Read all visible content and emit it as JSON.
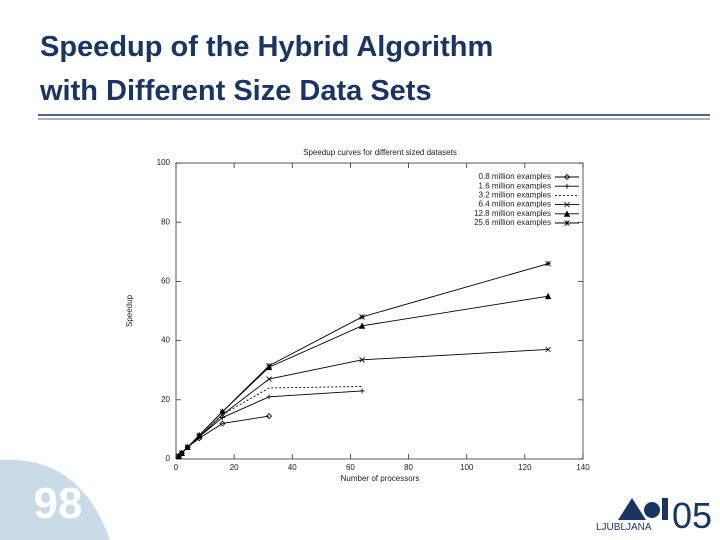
{
  "slide": {
    "title_lines": [
      "Speedup of the Hybrid Algorithm",
      "with Different Size Data Sets"
    ],
    "page_number": "98",
    "logo_text": "LJUBLJANA",
    "logo_year": "05"
  },
  "chart_data": {
    "type": "line",
    "title": "Speedup curves for different sized datasets",
    "x_label": "Number of processors",
    "y_label": "Speedup",
    "xlim": [
      0,
      140
    ],
    "xticks": [
      0,
      20,
      40,
      60,
      80,
      100,
      120,
      140
    ],
    "ylim": [
      0,
      100
    ],
    "yticks": [
      0,
      20,
      40,
      60,
      80,
      100
    ],
    "grid": false,
    "legend": "top-right",
    "series": [
      {
        "name": "0.8 million examples",
        "color": "#000000",
        "marker": "diamond",
        "x": [
          1,
          2,
          4,
          8,
          16,
          32
        ],
        "values": [
          1,
          2,
          4,
          7,
          12,
          14.5
        ]
      },
      {
        "name": "1.6 million examples",
        "color": "#000000",
        "marker": "plus",
        "x": [
          1,
          2,
          4,
          8,
          16,
          32,
          64
        ],
        "values": [
          1,
          2,
          4,
          7.5,
          14,
          21,
          23
        ]
      },
      {
        "name": "3.2 million examples",
        "color": "#000000",
        "marker": "none",
        "x": [
          1,
          2,
          4,
          8,
          16,
          32,
          64
        ],
        "values": [
          1,
          2,
          4,
          7.5,
          15,
          24,
          24.5
        ]
      },
      {
        "name": "6.4 million examples",
        "color": "#000000",
        "marker": "cross",
        "x": [
          1,
          2,
          4,
          8,
          16,
          32,
          64,
          128
        ],
        "values": [
          1,
          2,
          4,
          7.5,
          15,
          27,
          33.5,
          37
        ]
      },
      {
        "name": "12.8 million examples",
        "color": "#000000",
        "marker": "triangle",
        "x": [
          1,
          2,
          4,
          8,
          16,
          32,
          64,
          128
        ],
        "values": [
          1,
          2,
          4,
          8,
          16,
          31,
          45,
          55
        ]
      },
      {
        "name": "25.6 million examples",
        "color": "#000000",
        "marker": "star",
        "x": [
          1,
          2,
          4,
          8,
          16,
          32,
          64,
          128
        ],
        "values": [
          1,
          2,
          4,
          8,
          16,
          31.5,
          48,
          66
        ]
      }
    ]
  }
}
